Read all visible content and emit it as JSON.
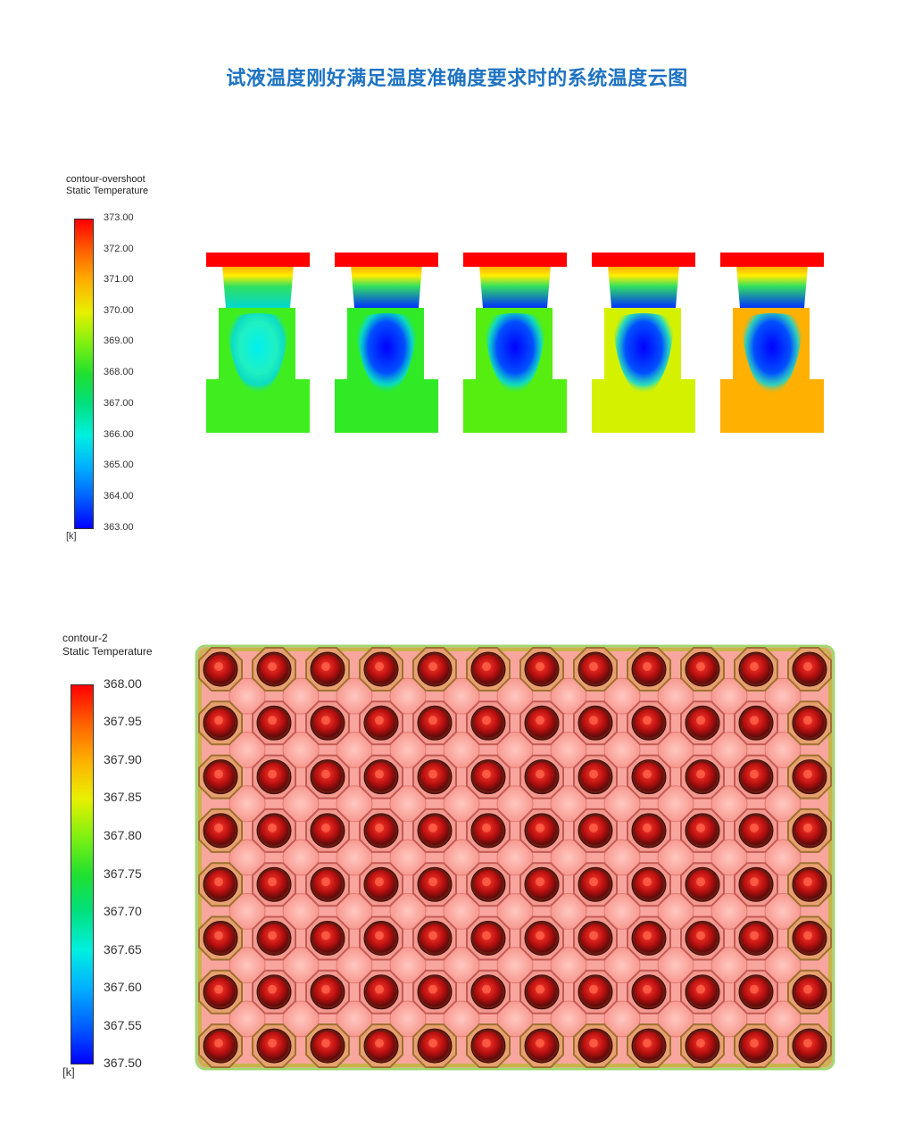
{
  "title": "试液温度刚好满足温度准确度要求时的系统温度云图",
  "legend_top": {
    "name": "contour-overshoot",
    "variable": "Static Temperature",
    "unit": "[k]",
    "ticks": [
      "373.00",
      "372.00",
      "371.00",
      "370.00",
      "369.00",
      "368.00",
      "367.00",
      "366.00",
      "365.00",
      "364.00",
      "363.00"
    ]
  },
  "legend_bottom": {
    "name": "contour-2",
    "variable": "Static Temperature",
    "unit": "[k]",
    "ticks": [
      "368.00",
      "367.95",
      "367.90",
      "367.85",
      "367.80",
      "367.75",
      "367.70",
      "367.65",
      "367.60",
      "367.55",
      "367.50"
    ]
  },
  "section_colors": {
    "lid": "#ff0000",
    "cold_core": "#0000ff",
    "bodies": [
      "#40ee20",
      "#30ea25",
      "#55ee10",
      "#d4f200",
      "#ffb000"
    ]
  },
  "plate_colors": {
    "background": "#f8a59e",
    "well_core": "#b81010",
    "edge": "#c8b448"
  }
}
